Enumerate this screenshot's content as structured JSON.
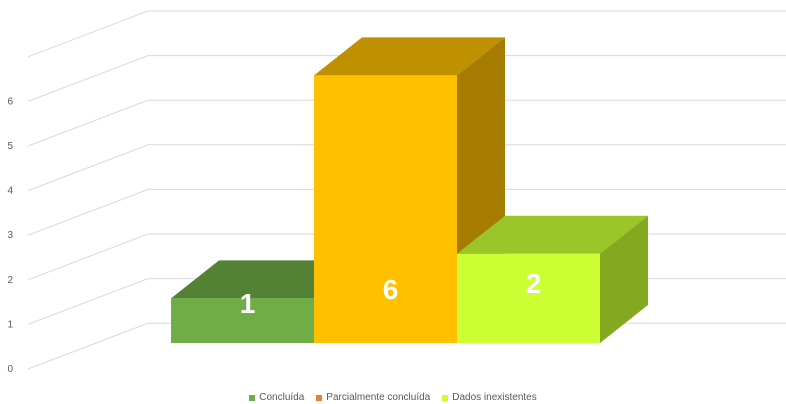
{
  "chart_data": {
    "type": "bar",
    "style": "3d-columns",
    "categories": [
      "Concluída",
      "Parcialmente concluída",
      "Dados inexistentes"
    ],
    "values": [
      1,
      6,
      2
    ],
    "data_labels": [
      "1",
      "6",
      "2"
    ],
    "ylim": [
      0,
      7
    ],
    "yticks": [
      0,
      1,
      2,
      3,
      4,
      5,
      6
    ],
    "grid": true,
    "legend": {
      "position": "bottom",
      "entries": [
        {
          "label": "Concluída",
          "color": "#70ad47"
        },
        {
          "label": "Parcialmente concluída",
          "color": "#ed7d31"
        },
        {
          "label": "Dados inexistentes",
          "color": "#ccff33"
        }
      ]
    },
    "bar_colors": [
      {
        "front": "#70ad47",
        "top": "#548235",
        "side": "#507e32"
      },
      {
        "front": "#ffc000",
        "top": "#bf9000",
        "side": "#a67c00"
      },
      {
        "front": "#ccff33",
        "top": "#9bc62a",
        "side": "#84a81f"
      }
    ]
  }
}
